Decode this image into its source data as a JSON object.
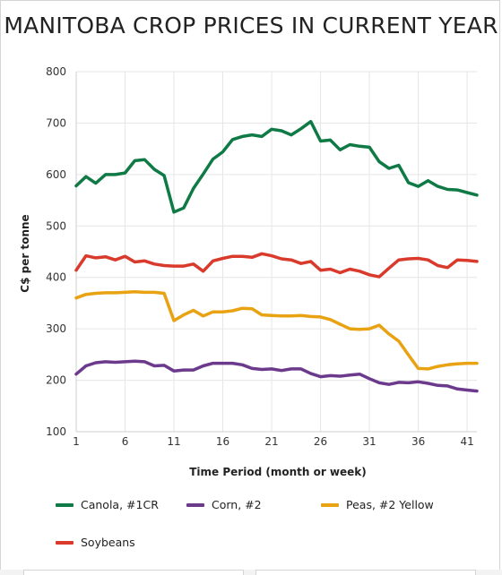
{
  "chart_data": {
    "type": "line",
    "title": "MANITOBA CROP PRICES IN CURRENT YEAR",
    "xlabel": "Time Period (month or week)",
    "ylabel": "C$ per tonne",
    "xlim": [
      1,
      42
    ],
    "ylim": [
      100,
      800
    ],
    "x_ticks": [
      1,
      6,
      11,
      16,
      21,
      26,
      31,
      36,
      41
    ],
    "y_ticks": [
      100,
      200,
      300,
      400,
      500,
      600,
      700,
      800
    ],
    "grid": true,
    "legend_position": "bottom",
    "x": [
      1,
      2,
      3,
      4,
      5,
      6,
      7,
      8,
      9,
      10,
      11,
      12,
      13,
      14,
      15,
      16,
      17,
      18,
      19,
      20,
      21,
      22,
      23,
      24,
      25,
      26,
      27,
      28,
      29,
      30,
      31,
      32,
      33,
      34,
      35,
      36,
      37,
      38,
      39,
      40,
      41,
      42
    ],
    "series": [
      {
        "name": "Canola, #1CR",
        "color": "#0f7a45",
        "values": [
          578,
          596,
          583,
          600,
          600,
          603,
          627,
          629,
          610,
          598,
          527,
          535,
          573,
          601,
          630,
          644,
          668,
          674,
          677,
          674,
          688,
          685,
          677,
          689,
          703,
          665,
          667,
          648,
          658,
          655,
          653,
          625,
          612,
          618,
          584,
          577,
          588,
          577,
          571,
          570,
          565,
          560
        ]
      },
      {
        "name": "Corn, #2",
        "color": "#6b3a8c",
        "values": [
          212,
          228,
          234,
          236,
          235,
          236,
          237,
          236,
          228,
          229,
          218,
          220,
          220,
          228,
          233,
          233,
          233,
          230,
          223,
          221,
          222,
          219,
          222,
          222,
          213,
          207,
          209,
          208,
          210,
          212,
          203,
          195,
          192,
          196,
          195,
          197,
          194,
          190,
          189,
          183,
          181,
          179
        ]
      },
      {
        "name": "Peas, #2 Yellow",
        "color": "#e8a212",
        "values": [
          360,
          367,
          369,
          370,
          370,
          371,
          372,
          371,
          371,
          369,
          316,
          327,
          336,
          325,
          333,
          333,
          335,
          340,
          339,
          327,
          326,
          325,
          325,
          326,
          324,
          323,
          318,
          309,
          300,
          299,
          300,
          307,
          290,
          276,
          249,
          223,
          222,
          227,
          230,
          232,
          233,
          233
        ]
      },
      {
        "name": "Soybeans",
        "color": "#d93a2b",
        "values": [
          414,
          442,
          438,
          440,
          434,
          441,
          430,
          432,
          426,
          423,
          422,
          422,
          426,
          412,
          432,
          437,
          441,
          441,
          439,
          446,
          442,
          436,
          434,
          427,
          431,
          414,
          416,
          409,
          416,
          412,
          405,
          401,
          418,
          434,
          436,
          437,
          434,
          423,
          419,
          434,
          433,
          431
        ]
      }
    ]
  }
}
